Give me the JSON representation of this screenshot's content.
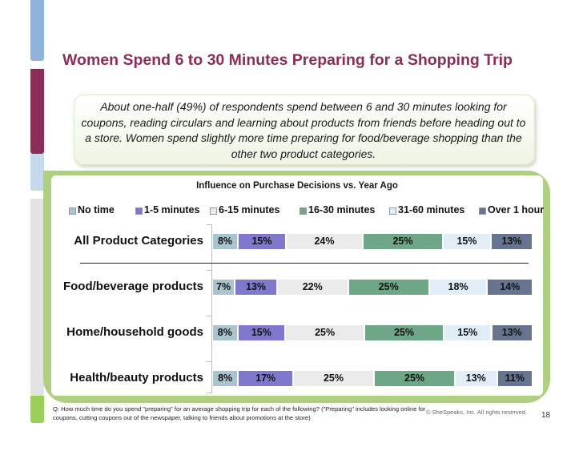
{
  "slide": {
    "title": "Women Spend 6 to 30 Minutes Preparing for a Shopping Trip",
    "summary": "About one-half (49%) of respondents spend between 6 and 30 minutes looking for coupons, reading circulars and learning about products from friends before heading out to a store.  Women spend slightly more time preparing for food/beverage shopping than the other two product categories.",
    "footnote": "Q: How much time do you spend \"preparing\" for an average shopping trip for each of the following? (\"Preparing\" includes looking online for coupons, cutting coupons out of the newspaper, talking to friends about promotions at the store)",
    "copyright": "© SheSpeaks, Inc. All rights reserved.",
    "page_number": "18",
    "accent_colors": {
      "title": "#8b2e57",
      "panel": "#aed080",
      "side_bar_blue": "#8fb3db",
      "side_bar_maroon": "#8b2e57",
      "side_bar_green": "#9ccf5a"
    }
  },
  "chart_data": {
    "type": "bar",
    "orientation": "horizontal",
    "stacked": true,
    "title": "Influence on Purchase Decisions vs. Year Ago",
    "categories": [
      "All Product Categories",
      "Food/beverage products",
      "Home/household goods",
      "Health/beauty products"
    ],
    "series": [
      {
        "name": "No time",
        "color": "#a9c4cc",
        "values": [
          8,
          7,
          8,
          8
        ],
        "labels": [
          "8%",
          "7%",
          "8%",
          "8%"
        ]
      },
      {
        "name": "1-5 minutes",
        "color": "#8078cc",
        "values": [
          15,
          13,
          15,
          17
        ],
        "labels": [
          "15%",
          "13%",
          "15%",
          "17%"
        ]
      },
      {
        "name": "6-15 minutes",
        "color": "#ebebeb",
        "values": [
          24,
          22,
          25,
          25
        ],
        "labels": [
          "24%",
          "22%",
          "25%",
          "25%"
        ]
      },
      {
        "name": "16-30 minutes",
        "color": "#6ea787",
        "values": [
          25,
          25,
          25,
          25
        ],
        "labels": [
          "25%",
          "25%",
          "25%",
          "25%"
        ]
      },
      {
        "name": "31-60 minutes",
        "color": "#e2eef7",
        "values": [
          15,
          18,
          15,
          13
        ],
        "labels": [
          "15%",
          "18%",
          "15%",
          "13%"
        ]
      },
      {
        "name": "Over 1 hour",
        "color": "#66748f",
        "values": [
          13,
          14,
          13,
          11
        ],
        "labels": [
          "13%",
          "14%",
          "13%",
          "11%"
        ]
      }
    ],
    "legend_position": "top",
    "grid": false
  }
}
